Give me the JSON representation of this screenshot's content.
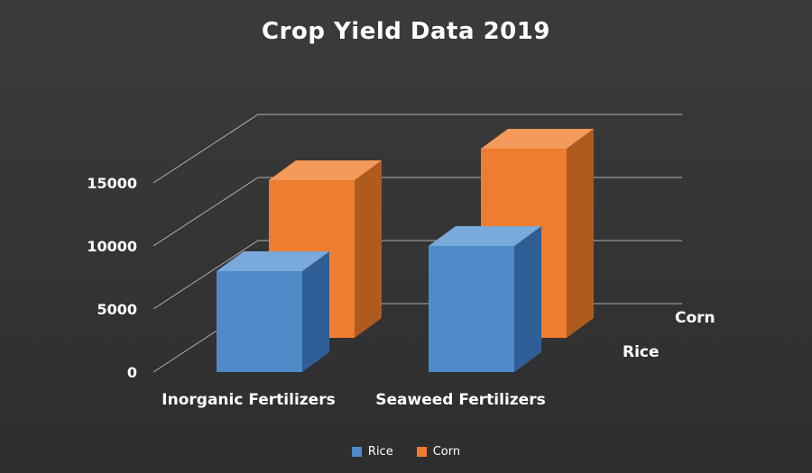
{
  "chart_data": {
    "type": "bar",
    "subtype": "3d-column",
    "title": "Crop Yield Data 2019",
    "categories": [
      "Inorganic Fertilizers",
      "Seaweed Fertilizers"
    ],
    "series": [
      {
        "name": "Rice",
        "values": [
          8000,
          10000
        ],
        "color": "#4E8BC8",
        "top_color": "#7AA9DC",
        "side_color": "#2F5E96"
      },
      {
        "name": "Corn",
        "values": [
          12500,
          15000
        ],
        "color": "#ED7D31",
        "top_color": "#F49A5B",
        "side_color": "#AF5A1E"
      }
    ],
    "ylim": [
      0,
      15000
    ],
    "ytick_interval": 5000,
    "yticks": [
      "0",
      "5000",
      "10000",
      "15000"
    ],
    "depth_axis_labels": [
      "Rice",
      "Corn"
    ],
    "legend": {
      "position": "bottom",
      "entries": [
        "Rice",
        "Corn"
      ]
    },
    "grid": true,
    "colors": {
      "background": "#343434",
      "text": "#FFFFFF",
      "gridline": "#D9D9D9"
    }
  }
}
